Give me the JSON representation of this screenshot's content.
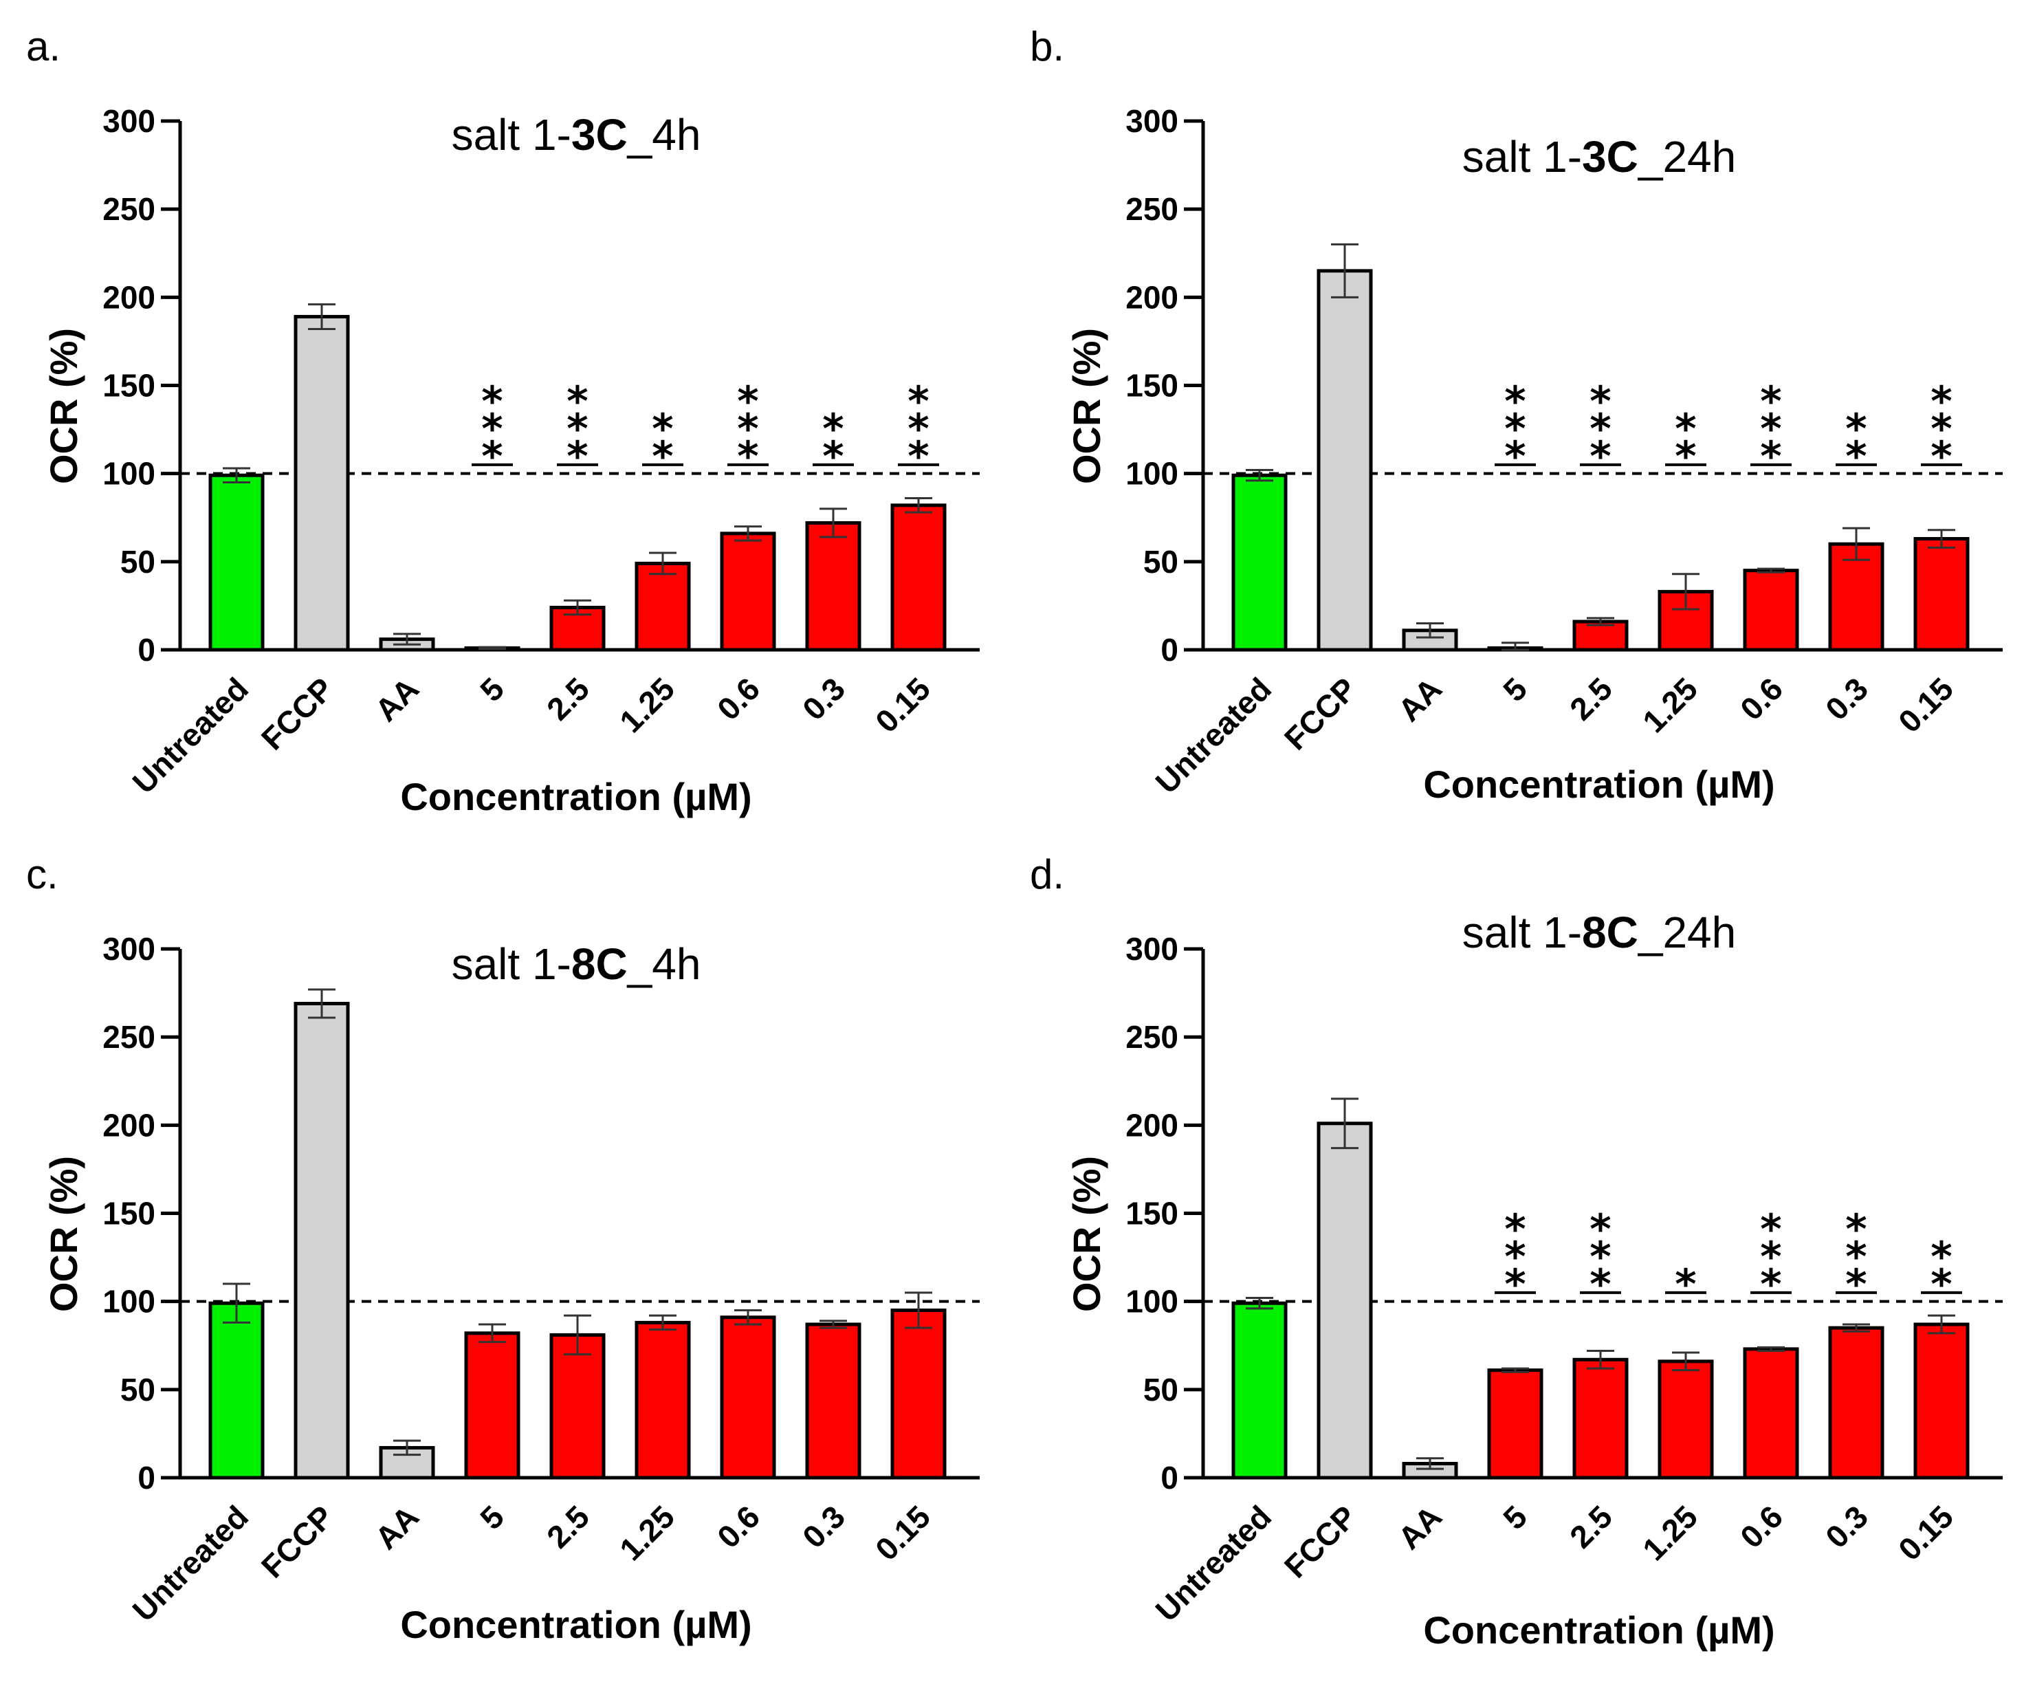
{
  "colors": {
    "untreated": "#00ee00",
    "control": "#d3d3d3",
    "treatment": "#ff0000",
    "axis": "#000000"
  },
  "chart_data": [
    {
      "panel": "a.",
      "type": "bar",
      "title": {
        "prefix": "salt 1-",
        "bold": "3C",
        "suffix": "_4h"
      },
      "xlabel": "Concentration (µM)",
      "ylabel": "OCR (%)",
      "ylim": [
        0,
        300
      ],
      "yticks": [
        "0",
        "50",
        "100",
        "150",
        "200",
        "250",
        "300"
      ],
      "reference_line": 100,
      "categories": [
        "Untreated",
        "FCCP",
        "AA",
        "5",
        "2.5",
        "1.25",
        "0.6",
        "0.3",
        "0.15"
      ],
      "values": [
        99,
        189,
        6,
        1,
        24,
        49,
        66,
        72,
        82
      ],
      "errors": [
        4,
        7,
        3,
        0.5,
        4,
        6,
        4,
        8,
        4
      ],
      "significance": [
        "",
        "",
        "",
        "***",
        "***",
        "**",
        "***",
        "**",
        "***"
      ]
    },
    {
      "panel": "b.",
      "type": "bar",
      "title": {
        "prefix": "salt 1-",
        "bold": "3C",
        "suffix": "_24h"
      },
      "xlabel": "Concentration (µM)",
      "ylabel": "OCR (%)",
      "ylim": [
        0,
        300
      ],
      "yticks": [
        "0",
        "50",
        "100",
        "150",
        "200",
        "250",
        "300"
      ],
      "reference_line": 100,
      "categories": [
        "Untreated",
        "FCCP",
        "AA",
        "5",
        "2.5",
        "1.25",
        "0.6",
        "0.3",
        "0.15"
      ],
      "values": [
        99,
        215,
        11,
        1,
        16,
        33,
        45,
        60,
        63
      ],
      "errors": [
        3,
        15,
        4,
        3,
        2,
        10,
        1,
        9,
        5
      ],
      "significance": [
        "",
        "",
        "",
        "***",
        "***",
        "**",
        "***",
        "**",
        "***"
      ]
    },
    {
      "panel": "c.",
      "type": "bar",
      "title": {
        "prefix": "salt 1-",
        "bold": "8C",
        "suffix": "_4h"
      },
      "xlabel": "Concentration (µM)",
      "ylabel": "OCR (%)",
      "ylim": [
        0,
        300
      ],
      "yticks": [
        "0",
        "50",
        "100",
        "150",
        "200",
        "250",
        "300"
      ],
      "reference_line": 100,
      "categories": [
        "Untreated",
        "FCCP",
        "AA",
        "5",
        "2.5",
        "1.25",
        "0.6",
        "0.3",
        "0.15"
      ],
      "values": [
        99,
        269,
        17,
        82,
        81,
        88,
        91,
        87,
        95
      ],
      "errors": [
        11,
        8,
        4,
        5,
        11,
        4,
        4,
        2,
        10
      ],
      "significance": [
        "",
        "",
        "",
        "",
        "",
        "",
        "",
        "",
        ""
      ]
    },
    {
      "panel": "d.",
      "type": "bar",
      "title": {
        "prefix": "salt 1-",
        "bold": "8C",
        "suffix": "_24h"
      },
      "xlabel": "Concentration (µM)",
      "ylabel": "OCR (%)",
      "ylim": [
        0,
        300
      ],
      "yticks": [
        "0",
        "50",
        "100",
        "150",
        "200",
        "250",
        "300"
      ],
      "reference_line": 100,
      "categories": [
        "Untreated",
        "FCCP",
        "AA",
        "5",
        "2.5",
        "1.25",
        "0.6",
        "0.3",
        "0.15"
      ],
      "values": [
        99,
        201,
        8,
        61,
        67,
        66,
        73,
        85,
        87
      ],
      "errors": [
        3,
        14,
        3,
        1,
        5,
        5,
        1,
        2,
        5
      ],
      "significance": [
        "",
        "",
        "",
        "***",
        "***",
        "*",
        "***",
        "***",
        "**"
      ]
    }
  ]
}
